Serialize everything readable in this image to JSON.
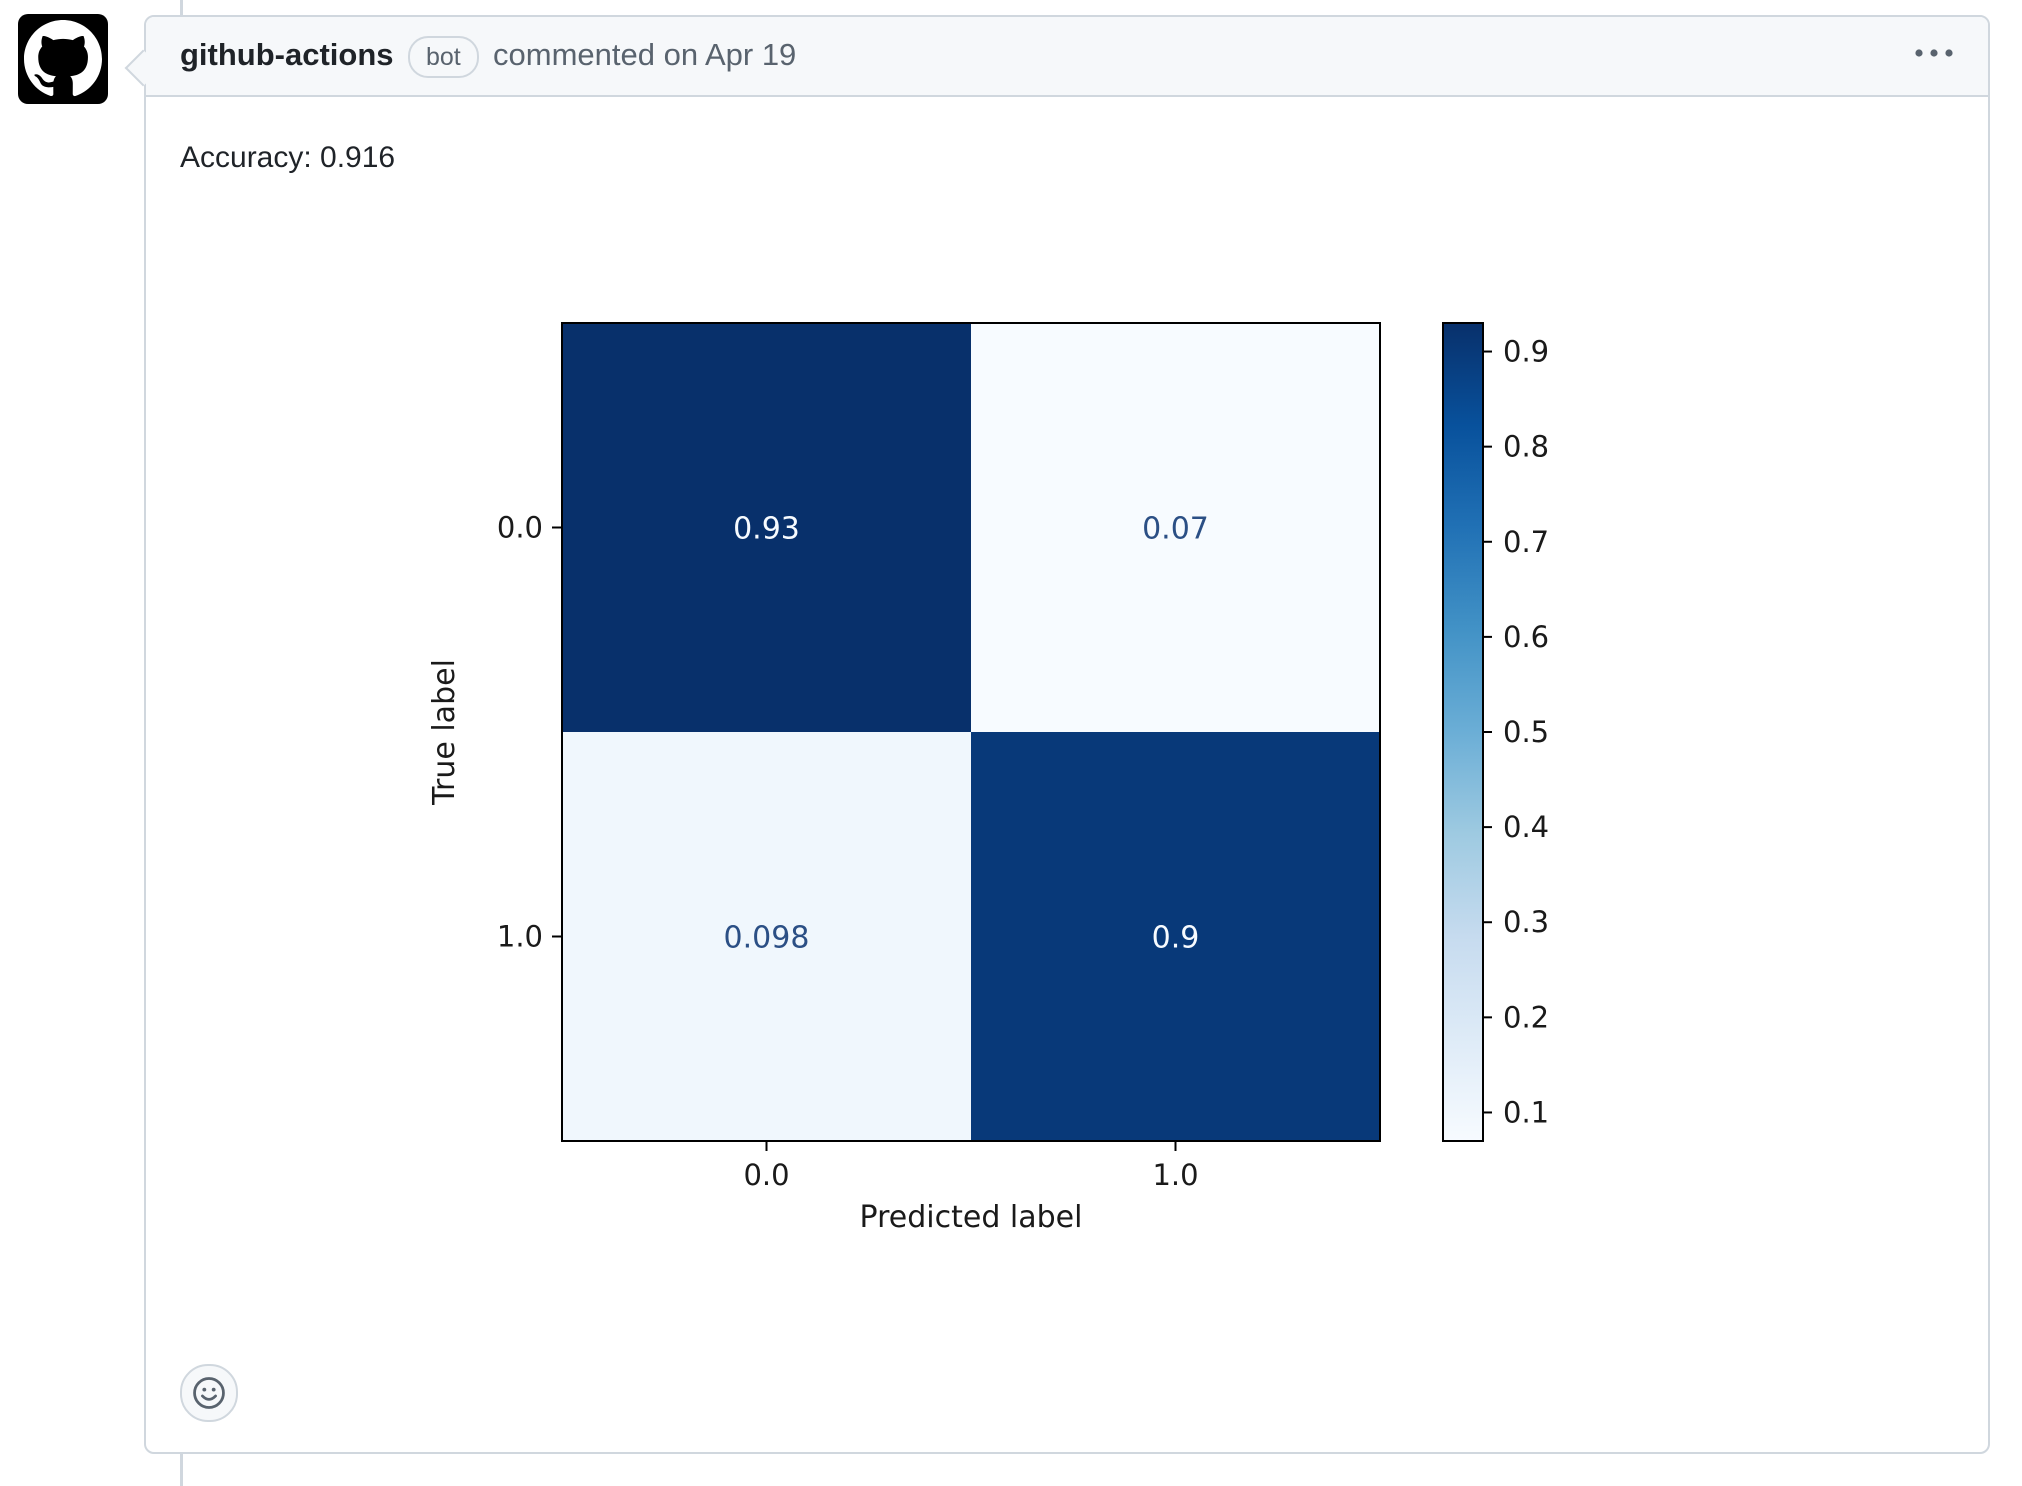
{
  "comment": {
    "author": "github-actions",
    "badge": "bot",
    "meta": "commented on Apr 19",
    "body": {
      "accuracy_text": "Accuracy: 0.916"
    }
  },
  "icons": {
    "avatar": "github-mark-icon",
    "more": "kebab-horizontal-icon",
    "reaction": "smiley-icon"
  },
  "colors": {
    "dark_cell": "#08306b",
    "light_cell": "#f7fbff",
    "light_cell_2": "#eff5fc",
    "border": "#d0d7de",
    "header_bg": "#f6f8fa"
  },
  "chart_data": {
    "type": "heatmap",
    "title": "",
    "xlabel": "Predicted label",
    "ylabel": "True label",
    "x_categories": [
      "0.0",
      "1.0"
    ],
    "y_categories": [
      "0.0",
      "1.0"
    ],
    "matrix": [
      [
        0.93,
        0.07
      ],
      [
        0.098,
        0.9
      ]
    ],
    "cell_labels": [
      [
        "0.93",
        "0.07"
      ],
      [
        "0.098",
        "0.9"
      ]
    ],
    "colorscale": "Blues",
    "colorbar": {
      "range": [
        0.07,
        0.93
      ],
      "ticks": [
        0.9,
        0.8,
        0.7,
        0.6,
        0.5,
        0.4,
        0.3,
        0.2,
        0.1
      ],
      "tick_labels": [
        "0.9",
        "0.8",
        "0.7",
        "0.6",
        "0.5",
        "0.4",
        "0.3",
        "0.2",
        "0.1"
      ]
    }
  }
}
